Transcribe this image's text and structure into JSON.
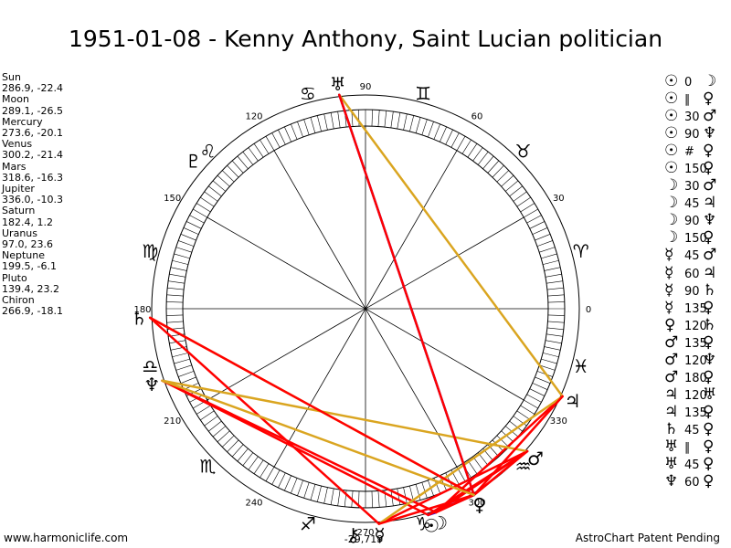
{
  "title": "1951-01-08 - Kenny Anthony, Saint Lucian politician",
  "planets": [
    {
      "name": "Sun",
      "coords": "286.9, -22.4",
      "glyph": "☉",
      "lon": 286.9
    },
    {
      "name": "Moon",
      "coords": "289.1, -26.5",
      "glyph": "☽",
      "lon": 289.1
    },
    {
      "name": "Mercury",
      "coords": "273.6, -20.1",
      "glyph": "☿",
      "lon": 273.6
    },
    {
      "name": "Venus",
      "coords": "300.2, -21.4",
      "glyph": "♀",
      "lon": 300.2
    },
    {
      "name": "Mars",
      "coords": "318.6, -16.3",
      "glyph": "♂",
      "lon": 318.6
    },
    {
      "name": "Jupiter",
      "coords": "336.0, -10.3",
      "glyph": "♃",
      "lon": 336.0
    },
    {
      "name": "Saturn",
      "coords": "182.4, 1.2",
      "glyph": "♄",
      "lon": 182.4
    },
    {
      "name": "Uranus",
      "coords": "97.0, 23.6",
      "glyph": "♅",
      "lon": 97.0
    },
    {
      "name": "Neptune",
      "coords": "199.5, -6.1",
      "glyph": "♆",
      "lon": 199.5
    },
    {
      "name": "Pluto",
      "coords": "139.4, 23.2",
      "glyph": "♇",
      "lon": 139.4
    },
    {
      "name": "Chiron",
      "coords": "266.9, -18.1",
      "glyph": "⚷",
      "lon": 266.9
    }
  ],
  "aspects": [
    {
      "p1": "☉",
      "angle": "0",
      "p2": "☽"
    },
    {
      "p1": "☉",
      "angle": "∥",
      "p2": "♀"
    },
    {
      "p1": "☉",
      "angle": "30",
      "p2": "♂"
    },
    {
      "p1": "☉",
      "angle": "90",
      "p2": "♆"
    },
    {
      "p1": "☉",
      "angle": "#",
      "p2": "♀"
    },
    {
      "p1": "☉",
      "angle": "150",
      "p2": "♀"
    },
    {
      "p1": "☽",
      "angle": "30",
      "p2": "♂"
    },
    {
      "p1": "☽",
      "angle": "45",
      "p2": "♃"
    },
    {
      "p1": "☽",
      "angle": "90",
      "p2": "♆"
    },
    {
      "p1": "☽",
      "angle": "150",
      "p2": "♀"
    },
    {
      "p1": "☿",
      "angle": "45",
      "p2": "♂"
    },
    {
      "p1": "☿",
      "angle": "60",
      "p2": "♃"
    },
    {
      "p1": "☿",
      "angle": "90",
      "p2": "♄"
    },
    {
      "p1": "☿",
      "angle": "135",
      "p2": "♀"
    },
    {
      "p1": "♀",
      "angle": "120",
      "p2": "♄"
    },
    {
      "p1": "♂",
      "angle": "135",
      "p2": "♀"
    },
    {
      "p1": "♂",
      "angle": "120",
      "p2": "♆"
    },
    {
      "p1": "♂",
      "angle": "180",
      "p2": "♀"
    },
    {
      "p1": "♃",
      "angle": "120",
      "p2": "♅"
    },
    {
      "p1": "♃",
      "angle": "135",
      "p2": "♀"
    },
    {
      "p1": "♄",
      "angle": "45",
      "p2": "♀"
    },
    {
      "p1": "♅",
      "angle": "∥",
      "p2": "♀"
    },
    {
      "p1": "♅",
      "angle": "45",
      "p2": "♀"
    },
    {
      "p1": "♆",
      "angle": "60",
      "p2": "♀"
    }
  ],
  "wheel": {
    "degree_labels": [
      "0",
      "30",
      "60",
      "90",
      "120",
      "150",
      "180",
      "210",
      "240",
      "270",
      "300",
      "330"
    ],
    "zodiac_glyphs": [
      "♈",
      "♓",
      "♒",
      "♑",
      "♐",
      "♏",
      "♎",
      "♍",
      "♌",
      "♋",
      "♊",
      "♉"
    ],
    "bottom_label": "-29,719"
  },
  "colors": {
    "conjunction": "#0000ff",
    "hard": "#ff0000",
    "trine": "#daa520",
    "minor": "#dd0000"
  },
  "footer": {
    "left": "www.harmoniclife.com",
    "right": "AstroChart Patent Pending"
  }
}
